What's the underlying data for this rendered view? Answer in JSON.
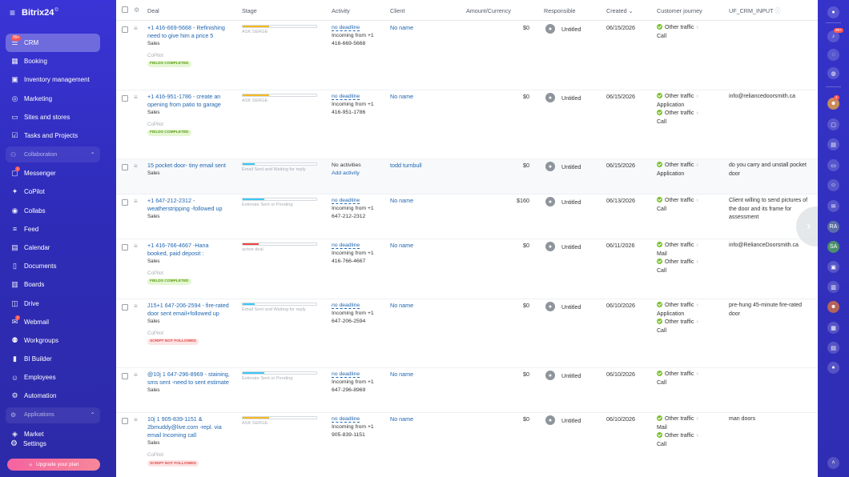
{
  "app": {
    "name": "Bitrix24",
    "version_mark": "©"
  },
  "sidebar": {
    "items": [
      {
        "label": "CRM",
        "icon": "funnel-icon",
        "glyph": "☰",
        "active": true,
        "badge": "99+"
      },
      {
        "label": "Booking",
        "icon": "calendar-grid-icon",
        "glyph": "▦"
      },
      {
        "label": "Inventory management",
        "icon": "box-icon",
        "glyph": "▣"
      },
      {
        "label": "Marketing",
        "icon": "target-icon",
        "glyph": "◎"
      },
      {
        "label": "Sites and stores",
        "icon": "site-icon",
        "glyph": "▭"
      },
      {
        "label": "Tasks and Projects",
        "icon": "tasks-icon",
        "glyph": "☑"
      },
      {
        "group": "Collaboration",
        "icon": "collaboration-icon",
        "glyph": "⚇"
      },
      {
        "label": "Messenger",
        "icon": "chat-icon",
        "glyph": "▢",
        "dot": "1"
      },
      {
        "label": "CoPilot",
        "icon": "copilot-icon",
        "glyph": "✦"
      },
      {
        "label": "Collabs",
        "icon": "collabs-icon",
        "glyph": "◉"
      },
      {
        "label": "Feed",
        "icon": "feed-icon",
        "glyph": "≡"
      },
      {
        "label": "Calendar",
        "icon": "calendar-icon",
        "glyph": "▤"
      },
      {
        "label": "Documents",
        "icon": "documents-icon",
        "glyph": "▯"
      },
      {
        "label": "Boards",
        "icon": "boards-icon",
        "glyph": "▥"
      },
      {
        "label": "Drive",
        "icon": "drive-icon",
        "glyph": "◫"
      },
      {
        "label": "Webmail",
        "icon": "mail-icon",
        "glyph": "✉",
        "dot": "2"
      },
      {
        "label": "Workgroups",
        "icon": "workgroups-icon",
        "glyph": "⚉"
      },
      {
        "label": "BI Builder",
        "icon": "bi-chart-icon",
        "glyph": "▮"
      },
      {
        "label": "Employees",
        "icon": "employees-icon",
        "glyph": "☺"
      },
      {
        "label": "Automation",
        "icon": "automation-icon",
        "glyph": "⚙"
      },
      {
        "group": "Applications",
        "icon": "applications-icon",
        "glyph": "⚙"
      },
      {
        "label": "Market",
        "icon": "market-icon",
        "glyph": "◈"
      }
    ],
    "settings_label": "Settings",
    "upgrade_label": "Upgrade your plan"
  },
  "table": {
    "headers": {
      "deal": "Deal",
      "stage": "Stage",
      "activity": "Activity",
      "client": "Client",
      "amount": "Amount/Currency",
      "responsible": "Responsible",
      "created": "Created",
      "created_sort": "⌄",
      "journey": "Customer journey",
      "uf": "UF_CRM_INPUT",
      "uf_icon": "ⓘ"
    },
    "rows": [
      {
        "deal": "+1 416-669-5668 - Refinishing need to give him a price 5",
        "type": "Sales",
        "copilot": "CoPilot",
        "tag": "FIELDS COMPLETED",
        "tag_color": "green",
        "stage": "ASK SERGE",
        "stage_color": "#f5b921",
        "stage_fill": 0.36,
        "activity_link": "no deadline",
        "activity_text": "Incoming from +1 416-669-5668",
        "client": "No name",
        "amount": "$0",
        "responsible": "Untitled",
        "created": "06/15/2026",
        "journey": [
          {
            "text": "Other traffic",
            "sub": "Call"
          }
        ],
        "uf": "",
        "top": 27,
        "height": 86
      },
      {
        "deal": "+1 416-951-1786 - create an opening from patio to garage",
        "type": "Sales",
        "copilot": "CoPilot",
        "tag": "FIELDS COMPLETED",
        "tag_color": "green",
        "stage": "ASK SERGE",
        "stage_color": "#f5b921",
        "stage_fill": 0.36,
        "activity_link": "no deadline",
        "activity_text": "Incoming from +1 416-951-1786",
        "client": "No name",
        "amount": "$0",
        "responsible": "Untitled",
        "created": "06/15/2026",
        "journey": [
          {
            "text": "Other traffic",
            "sub": "Application"
          },
          {
            "text": "Other traffic",
            "sub": "Call"
          }
        ],
        "uf": "info@reliancedoorsmith.ca",
        "top": 113,
        "height": 86
      },
      {
        "deal": "15 pocket door- tiny email sent",
        "type": "Sales",
        "copilot": "",
        "tag": "",
        "tag_color": "",
        "stage": "Email Sent and Waiting for reply",
        "stage_color": "#3bc8f5",
        "stage_fill": 0.16,
        "activity_plain": "No activities",
        "activity_add": "Add activity",
        "client": "todd turnbull",
        "amount": "$0",
        "responsible": "Untitled",
        "created": "06/15/2026",
        "journey": [
          {
            "text": "Other traffic",
            "sub": "Application"
          }
        ],
        "uf": "do you carry and unstall pocket door",
        "top": 199,
        "height": 44,
        "highlight": true
      },
      {
        "deal": "+1 647-212-2312 - weatherstripping -followed up",
        "type": "Sales",
        "copilot": "",
        "tag": "",
        "tag_color": "",
        "stage": "Estimate Sent or Pending",
        "stage_color": "#3bc8f5",
        "stage_fill": 0.29,
        "activity_link": "no deadline",
        "activity_text": "Incoming from +1 647-212-2312",
        "client": "No name",
        "amount": "$160",
        "responsible": "Untitled",
        "created": "06/13/2026",
        "journey": [
          {
            "text": "Other traffic",
            "sub": "Call"
          }
        ],
        "uf": "Client willing to send pictures of the door and its frame for assessment",
        "top": 243,
        "height": 56
      },
      {
        "deal": "+1 416-766-4667 -Hana booked, paid deposit :",
        "type": "Sales",
        "copilot": "CoPilot",
        "tag": "FIELDS COMPLETED",
        "tag_color": "green",
        "stage": "active deal",
        "stage_color": "#f0433f",
        "stage_fill": 0.22,
        "activity_link": "no deadline",
        "activity_text": "Incoming from +1 416-766-4667",
        "client": "No name",
        "amount": "$0",
        "responsible": "Untitled",
        "created": "06/11/2026",
        "journey": [
          {
            "text": "Other traffic",
            "sub": "Mail"
          },
          {
            "text": "Other traffic",
            "sub": "Call"
          }
        ],
        "uf": "info@RelianceDoorsmith.ca",
        "top": 299,
        "height": 75
      },
      {
        "deal": "J15+1 647-206-2594 - fire-rated door sent email+followed up",
        "type": "Sales",
        "copilot": "CoPilot",
        "tag": "SCRIPT NOT FOLLOWED",
        "tag_color": "red",
        "stage": "Email Sent and Waiting for reply",
        "stage_color": "#3bc8f5",
        "stage_fill": 0.16,
        "activity_link": "no deadline",
        "activity_text": "Incoming from +1 647-206-2594",
        "client": "No name",
        "amount": "$0",
        "responsible": "Untitled",
        "created": "06/10/2026",
        "journey": [
          {
            "text": "Other traffic",
            "sub": "Application"
          },
          {
            "text": "Other traffic",
            "sub": "Call"
          }
        ],
        "uf": "pre-hung 45-minute fire-rated door",
        "top": 374,
        "height": 86
      },
      {
        "deal": "@10j 1 647-296-8969 - staining, sms sent -need to sent estimate",
        "type": "Sales",
        "copilot": "",
        "tag": "",
        "tag_color": "",
        "stage": "Estimate Sent or Pending",
        "stage_color": "#3bc8f5",
        "stage_fill": 0.29,
        "activity_link": "no deadline",
        "activity_text": "Incoming from +1 647-296-8969",
        "client": "No name",
        "amount": "$0",
        "responsible": "Untitled",
        "created": "06/10/2026",
        "journey": [
          {
            "text": "Other traffic",
            "sub": "Call"
          }
        ],
        "uf": "",
        "top": 460,
        "height": 56
      },
      {
        "deal": "10j 1 905-839-1151 & 2bmuddy@live.com -repl. via email Incoming call",
        "type": "Sales",
        "copilot": "CoPilot",
        "tag": "SCRIPT NOT FOLLOWED",
        "tag_color": "red",
        "stage": "ASK SERGE",
        "stage_color": "#f5b921",
        "stage_fill": 0.36,
        "activity_link": "no deadline",
        "activity_text": "Incoming from +1 905-839-1151",
        "client": "No name",
        "amount": "$0",
        "responsible": "Untitled",
        "created": "06/10/2026",
        "journey": [
          {
            "text": "Other traffic",
            "sub": "Mail"
          },
          {
            "text": "Other traffic",
            "sub": "Call"
          }
        ],
        "uf": "man doors",
        "top": 516,
        "height": 86
      }
    ]
  },
  "rightbar": {
    "badges": {
      "notifications": "99+",
      "avatar": "1"
    },
    "initials": [
      "RA",
      "SA"
    ]
  }
}
